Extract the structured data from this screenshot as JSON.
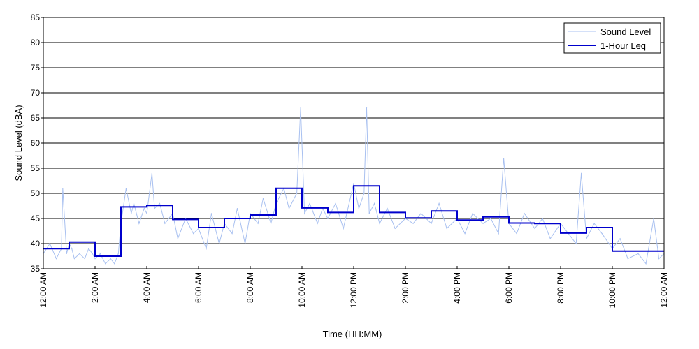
{
  "chart_data": {
    "type": "line",
    "xlabel": "Time (HH:MM)",
    "ylabel": "Sound Level (dBA)",
    "ylim": [
      35,
      85
    ],
    "yticks": [
      35,
      40,
      45,
      50,
      55,
      60,
      65,
      70,
      75,
      80,
      85
    ],
    "xlim_hours": [
      0,
      24
    ],
    "xticks": [
      {
        "hour": 0,
        "label": "12:00 AM"
      },
      {
        "hour": 2,
        "label": "2:00 AM"
      },
      {
        "hour": 4,
        "label": "4:00 AM"
      },
      {
        "hour": 6,
        "label": "6:00 AM"
      },
      {
        "hour": 8,
        "label": "8:00 AM"
      },
      {
        "hour": 10,
        "label": "10:00 AM"
      },
      {
        "hour": 12,
        "label": "12:00 PM"
      },
      {
        "hour": 14,
        "label": "2:00 PM"
      },
      {
        "hour": 16,
        "label": "4:00 PM"
      },
      {
        "hour": 18,
        "label": "6:00 PM"
      },
      {
        "hour": 20,
        "label": "8:00 PM"
      },
      {
        "hour": 22,
        "label": "10:00 PM"
      },
      {
        "hour": 24,
        "label": "12:00 AM"
      }
    ],
    "grid": "horizontal",
    "legend_position": "top-right",
    "series": [
      {
        "name": "Sound Level",
        "color": "#a8c0f0",
        "hours": [
          0,
          0.25,
          0.5,
          0.7,
          0.75,
          0.9,
          1,
          1.1,
          1.2,
          1.4,
          1.6,
          1.75,
          1.9,
          2,
          2.2,
          2.4,
          2.6,
          2.75,
          2.9,
          3,
          3.2,
          3.4,
          3.5,
          3.7,
          3.9,
          4,
          4.2,
          4.3,
          4.5,
          4.7,
          5,
          5.2,
          5.5,
          5.8,
          6,
          6.3,
          6.5,
          6.8,
          7,
          7.3,
          7.5,
          7.8,
          8,
          8.3,
          8.5,
          8.8,
          9,
          9.3,
          9.5,
          9.8,
          9.95,
          10.1,
          10.3,
          10.6,
          10.8,
          11,
          11.3,
          11.6,
          12,
          12.2,
          12.4,
          12.5,
          12.6,
          12.8,
          13,
          13.3,
          13.6,
          14,
          14.3,
          14.6,
          15,
          15.3,
          15.6,
          16,
          16.3,
          16.6,
          17,
          17.3,
          17.6,
          17.8,
          18,
          18.3,
          18.6,
          19,
          19.3,
          19.6,
          20,
          20.3,
          20.6,
          20.8,
          21,
          21.3,
          21.6,
          22,
          22.3,
          22.6,
          23,
          23.3,
          23.6,
          23.8,
          24
        ],
        "values": [
          38,
          40,
          37,
          39,
          51,
          38,
          40,
          39,
          37,
          38,
          37,
          39,
          38,
          37,
          38,
          36,
          37,
          36,
          38,
          44,
          51,
          46,
          48,
          44,
          47,
          46,
          54,
          47,
          48,
          44,
          46,
          41,
          45,
          42,
          43,
          39,
          46,
          40,
          44,
          42,
          47,
          40,
          46,
          44,
          49,
          44,
          48,
          51,
          47,
          50,
          67,
          46,
          48,
          44,
          47,
          45,
          48,
          43,
          52,
          47,
          50,
          67,
          46,
          48,
          44,
          47,
          43,
          45,
          44,
          46,
          44,
          48,
          43,
          45,
          42,
          46,
          44,
          45,
          42,
          57,
          44,
          42,
          46,
          43,
          45,
          41,
          44,
          42,
          40,
          54,
          41,
          44,
          42,
          39,
          41,
          37,
          38,
          36,
          45,
          37,
          38
        ]
      },
      {
        "name": "1-Hour Leq",
        "color": "#0000cc",
        "step_values": [
          39.0,
          40.3,
          37.5,
          47.3,
          47.6,
          44.8,
          43.2,
          45.0,
          45.7,
          51.0,
          47.1,
          46.2,
          51.5,
          46.2,
          45.1,
          46.5,
          44.7,
          45.3,
          44.1,
          44.0,
          42.1,
          43.2,
          38.5,
          38.5
        ]
      }
    ]
  }
}
